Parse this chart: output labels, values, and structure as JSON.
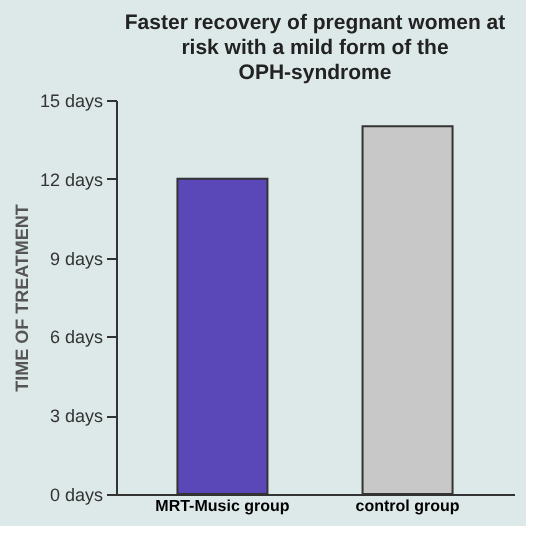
{
  "chart_data": {
    "type": "bar",
    "title": "Faster recovery of pregnant women at risk with a mild form of the OPH-syndrome",
    "categories": [
      "MRT-Music group",
      "control group"
    ],
    "values": [
      12,
      14
    ],
    "colors": [
      "#5a48b8",
      "#c8c8c8"
    ],
    "ylabel": "TIME OF TREATMENT",
    "ylim": [
      0,
      15
    ],
    "yticks": [
      {
        "value": 0,
        "label": "0 days"
      },
      {
        "value": 3,
        "label": "3 days"
      },
      {
        "value": 6,
        "label": "6 days"
      },
      {
        "value": 9,
        "label": "9 days"
      },
      {
        "value": 12,
        "label": "12 days"
      },
      {
        "value": 15,
        "label": "15 days"
      }
    ],
    "grid": false
  }
}
